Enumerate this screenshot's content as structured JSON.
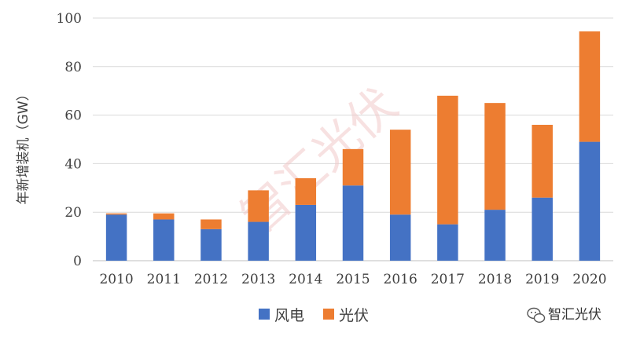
{
  "chart_data": {
    "type": "bar",
    "stacked": true,
    "categories": [
      "2010",
      "2011",
      "2012",
      "2013",
      "2014",
      "2015",
      "2016",
      "2017",
      "2018",
      "2019",
      "2020"
    ],
    "series": [
      {
        "name": "风电",
        "values": [
          19,
          17,
          13,
          16,
          23,
          31,
          19,
          15,
          21,
          26,
          49
        ],
        "color": "#4472c4"
      },
      {
        "name": "光伏",
        "values": [
          0.5,
          2.5,
          4,
          13,
          11,
          15,
          35,
          53,
          44,
          30,
          45.5
        ],
        "color": "#ed7d31"
      }
    ],
    "ylabel": "年新增装机（GW）",
    "ylim": [
      0,
      100
    ],
    "yticks": [
      0,
      20,
      40,
      60,
      80,
      100
    ],
    "grid": true,
    "legend": "bottom-center"
  },
  "watermark": {
    "text": "智汇光伏",
    "color": "#f2c9c9"
  },
  "brand": {
    "text": "智汇光伏",
    "icon": "wechat-icon"
  }
}
